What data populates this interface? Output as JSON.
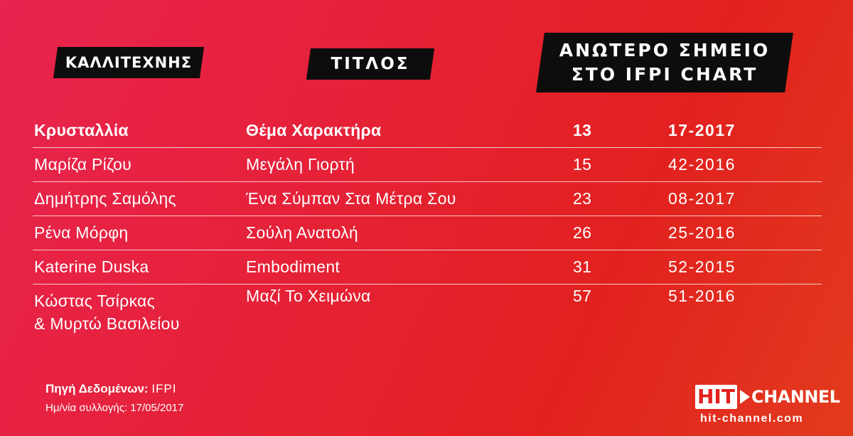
{
  "headers": {
    "artist": "ΚΑΛΛΙΤΕΧΝΗΣ",
    "title": "ΤΙΤΛΟΣ",
    "peak": "ΑΝΩΤΕΡΟ ΣΗΜΕΙΟ\nΣΤΟ IFPI CHART"
  },
  "rows": [
    {
      "artist": "Κρυσταλλία",
      "title": "Θέμα Χαρακτήρα",
      "peak": "13",
      "date": "17-2017"
    },
    {
      "artist": "Μαρίζα Ρίζου",
      "title": "Μεγάλη Γιορτή",
      "peak": "15",
      "date": "42-2016"
    },
    {
      "artist": "Δημήτρης Σαμόλης",
      "title": "Ένα Σύμπαν Στα Μέτρα Σου",
      "peak": "23",
      "date": "08-2017"
    },
    {
      "artist": "Ρένα Μόρφη",
      "title": "Σούλη Ανατολή",
      "peak": "26",
      "date": "25-2016"
    },
    {
      "artist": "Katerine Duska",
      "title": "Embodiment",
      "peak": "31",
      "date": "52-2015"
    },
    {
      "artist": "Κώστας Τσίρκας\n& Μυρτώ Βασιλείου",
      "title": "Μαζί Το Χειμώνα",
      "peak": "57",
      "date": "51-2016"
    }
  ],
  "footer": {
    "source_label": "Πηγή Δεδομένων:",
    "source_value": "IFPI",
    "collection": "Ημ/νία συλλογής: 17/05/2017"
  },
  "logo": {
    "hit": "HIT",
    "channel": "CHANNEL",
    "url": "hit-channel.com",
    "icon": "play-icon"
  },
  "colors": {
    "background_start": "#e8244f",
    "background_end": "#e23b1d",
    "header_bg": "#0d0d0d"
  }
}
